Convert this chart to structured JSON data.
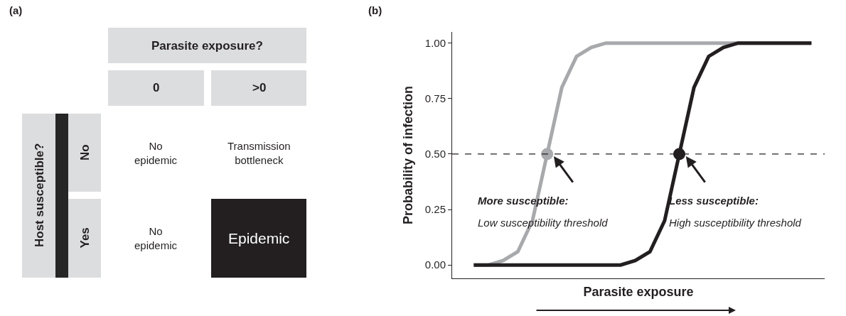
{
  "chart_data": [
    {
      "type": "other",
      "title": "(a)",
      "xlabel": "Parasite exposure?",
      "ylabel": "Host susceptible?",
      "categories": [
        "0",
        ">0"
      ],
      "y_categories": [
        "No",
        "Yes"
      ],
      "annotations": [
        "No\nepidemic",
        "Transmission\nbottleneck",
        "No\nepidemic",
        "Epidemic"
      ]
    },
    {
      "type": "line",
      "title": "(b)",
      "ylabel": "Probability of infection",
      "xlabel": "Parasite exposure",
      "categories": [
        null,
        null,
        null,
        null,
        null,
        null,
        null,
        null,
        null,
        null,
        null,
        null,
        null,
        null,
        null,
        null,
        null,
        null,
        null,
        null,
        null,
        null,
        null,
        null
      ],
      "series": [
        {
          "color": "#a7a9ac",
          "values": [
            0,
            0,
            0.02,
            0.06,
            0.2,
            0.5,
            0.8,
            0.94,
            0.98,
            1,
            1,
            1,
            1,
            1,
            1,
            1,
            1,
            1,
            1,
            1,
            1,
            1,
            1,
            1
          ]
        },
        {
          "color": "#231f20",
          "values": [
            0,
            0,
            0,
            0,
            0,
            0,
            0,
            0,
            0,
            0,
            0,
            0.02,
            0.06,
            0.2,
            0.5,
            0.8,
            0.94,
            0.98,
            1,
            1,
            1,
            1,
            1,
            1
          ]
        },
        {
          "type": "scatter",
          "marker": "circle",
          "color": "#a7a9ac",
          "values": [
            null,
            null,
            null,
            null,
            null,
            0.5,
            null,
            null,
            null,
            null,
            null,
            null,
            null,
            null,
            null,
            null,
            null,
            null,
            null,
            null,
            null,
            null,
            null,
            null
          ]
        },
        {
          "type": "scatter",
          "marker": "circle",
          "color": "#231f20",
          "values": [
            null,
            null,
            null,
            null,
            null,
            null,
            null,
            null,
            null,
            null,
            null,
            null,
            null,
            null,
            0.5,
            null,
            null,
            null,
            null,
            null,
            null,
            null,
            null,
            null
          ]
        }
      ],
      "ylim": [
        -0.06,
        1.05
      ],
      "yticks": [
        {
          "value": 0,
          "label": "0.00"
        },
        {
          "value": 0.25,
          "label": "0.25"
        },
        {
          "value": 0.5,
          "label": "0.50"
        },
        {
          "value": 0.75,
          "label": "0.75"
        },
        {
          "value": 1,
          "label": "1.00"
        }
      ],
      "ref_lines": [
        {
          "axis": "y",
          "value": 0.5,
          "line_style": "dashed",
          "color": "#231f20"
        }
      ],
      "annotations": [
        "More susceptible:",
        "Low susceptibility threshold",
        "Less susceptible:",
        "High susceptibility threshold"
      ]
    }
  ]
}
